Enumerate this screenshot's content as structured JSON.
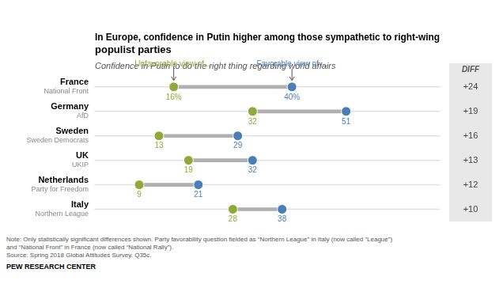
{
  "chart_data": {
    "type": "dumbbell",
    "title": "In Europe, confidence in Putin higher among those sympathetic to right-wing\npopulist parties",
    "subtitle": "Confidence in Putin to do the right thing regarding world affairs",
    "categories": [
      "France",
      "Germany",
      "Sweden",
      "UK",
      "Netherlands",
      "Italy"
    ],
    "subcategories": [
      "National Front",
      "AfD",
      "Sweden Democrats",
      "UKIP",
      "Party for Freedom",
      "Northern League"
    ],
    "series": [
      {
        "name": "Unfavorable view of ...",
        "color": "#8faa3a",
        "values": [
          16,
          32,
          13,
          19,
          9,
          28
        ],
        "value_labels": [
          "16%",
          "32",
          "13",
          "19",
          "9",
          "28"
        ]
      },
      {
        "name": "Favorable view of ...",
        "color": "#4a7fb5",
        "values": [
          40,
          51,
          29,
          32,
          21,
          38
        ],
        "value_labels": [
          "40%",
          "51",
          "29",
          "32",
          "21",
          "38"
        ]
      }
    ],
    "diff_title": "DIFF",
    "diff_labels": [
      "+24",
      "+19",
      "+16",
      "+13",
      "+12",
      "+10"
    ],
    "note": "Note: Only statistically significant differences shown. Party favorability question fielded as “Northern League” in Italy (now called “League”)\nand “National Front” in France (now called “National Rally”).\nSource: Spring 2018 Global Attitudes Survey. Q35c.",
    "footer": "PEW RESEARCH CENTER",
    "xlim": [
      0,
      70
    ],
    "grid": true,
    "tick_labels": "y",
    "data_labels": true,
    "orientation": "horizontal"
  }
}
